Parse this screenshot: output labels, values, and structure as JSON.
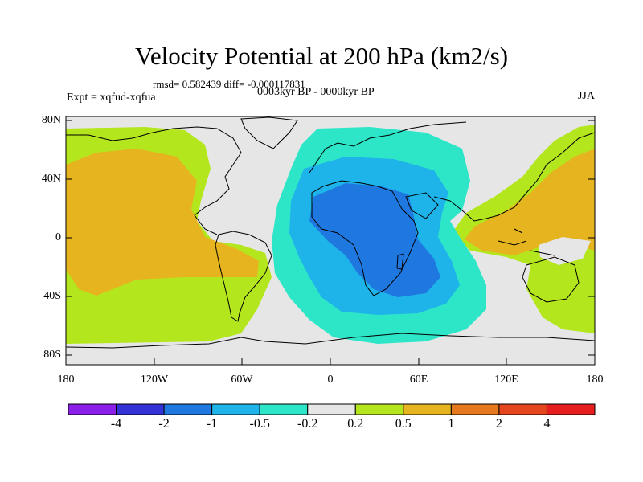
{
  "header": {
    "title": "Velocity Potential at 200 hPa (km2/s)",
    "stats": "rmsd= 0.582439 diff= -0.000117831",
    "period": "0003kyr BP - 0000kyr BP",
    "experiment": "Expt = xqfud-xqfua",
    "season": "JJA"
  },
  "axes": {
    "y_ticks": [
      "80N",
      "40N",
      "0",
      "40S",
      "80S"
    ],
    "x_ticks": [
      "180",
      "120W",
      "60W",
      "0",
      "60E",
      "120E",
      "180"
    ]
  },
  "colorbar": {
    "labels": [
      "-4",
      "-2",
      "-1",
      "-0.5",
      "-0.2",
      "0.2",
      "0.5",
      "1",
      "2",
      "4"
    ],
    "colors": [
      "#8c1eea",
      "#3232d6",
      "#1e78e0",
      "#1eb4ea",
      "#2de6c8",
      "#e6e6e6",
      "#b4e61e",
      "#e6b41e",
      "#e6781e",
      "#e6461e",
      "#e61e1e"
    ]
  },
  "palette": {
    "neutral": "#e6e6e6",
    "cyan_light": "#2de6c8",
    "cyan": "#1eb4ea",
    "blue": "#1e78e0",
    "lime": "#b4e61e",
    "orange": "#e6b41e"
  }
}
